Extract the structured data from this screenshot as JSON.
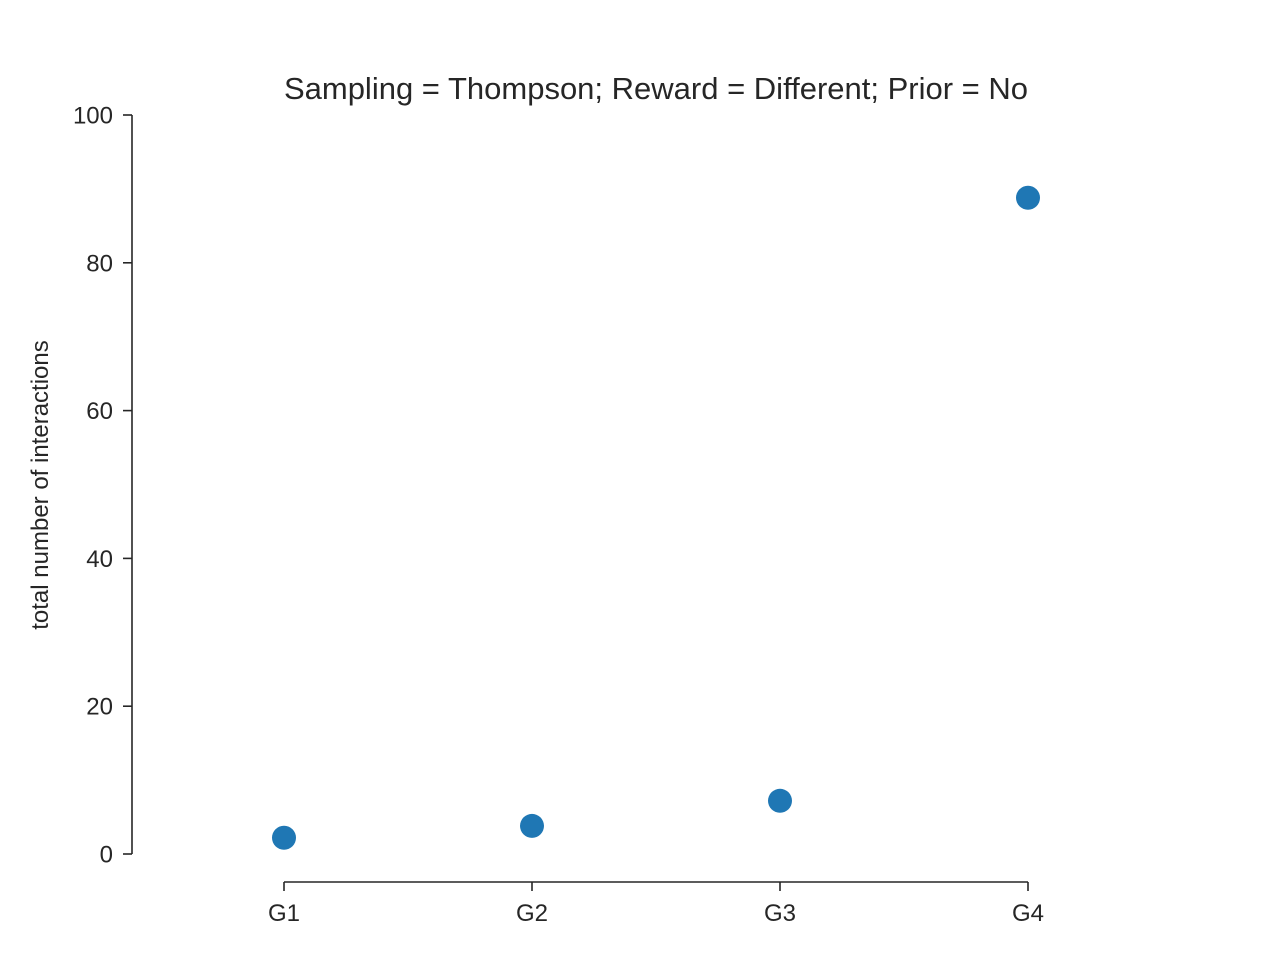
{
  "chart_data": {
    "type": "scatter",
    "title": "Sampling = Thompson; Reward = Different; Prior = No",
    "xlabel": "",
    "ylabel": "total number of interactions",
    "categories": [
      "G1",
      "G2",
      "G3",
      "G4"
    ],
    "values": [
      2.2,
      3.8,
      7.2,
      88.8
    ],
    "ylim": [
      0,
      100
    ],
    "yticks": [
      0,
      20,
      40,
      60,
      80,
      100
    ],
    "grid": false,
    "marker_color": "#1f77b4",
    "axis_color": "#262626"
  }
}
